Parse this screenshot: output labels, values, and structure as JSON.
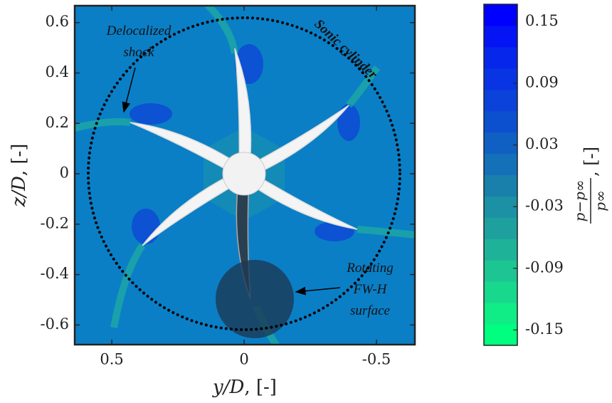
{
  "chart_data": {
    "type": "contour",
    "xlabel": {
      "var": "y/D",
      "unit": ", [-]"
    },
    "ylabel": {
      "var": "z/D",
      "unit": ", [-]"
    },
    "xlim": [
      0.64,
      -0.645
    ],
    "xticks": [
      0.5,
      0,
      -0.5
    ],
    "ylim": [
      -0.678,
      0.667
    ],
    "yticks": [
      0.6,
      0.4,
      0.2,
      0,
      -0.2,
      -0.4,
      -0.6
    ],
    "colorbar": {
      "lim": [
        -0.165,
        0.167
      ],
      "ticks": [
        0.15,
        0.09,
        0.03,
        -0.03,
        -0.09,
        -0.15
      ],
      "colors": [
        "#00ff7f",
        "#10ec86",
        "#17d88c",
        "#1cc592",
        "#1eb398",
        "#1ea19e",
        "#1c90a4",
        "#1880aa",
        "#1470b8",
        "#1060c4",
        "#0c50d0",
        "#0a42da",
        "#0834e4",
        "#0626ec",
        "#0414f4",
        "#0000ff"
      ],
      "label": {
        "numerator": "p−p∞",
        "denominator": "p∞",
        "unit": ", [-]"
      }
    },
    "annotations": {
      "shock": [
        "Delocalized",
        "shock"
      ],
      "sonic": "Sonic cylinder",
      "fwh": [
        "Rotating",
        "FW-H",
        "surface"
      ]
    }
  }
}
